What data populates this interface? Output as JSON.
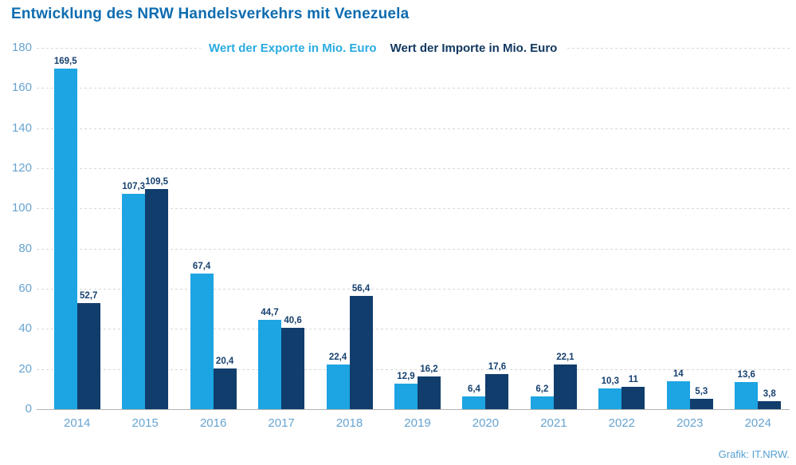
{
  "title": "Entwicklung des NRW Handelsverkehrs mit Venezuela",
  "legend": {
    "exports": "Wert der Exporte in Mio. Euro",
    "imports": "Wert der Importe in Mio. Euro"
  },
  "credit": "Grafik: IT.NRW.",
  "colors": {
    "export_bar": "#1da4e2",
    "import_bar": "#103d6c",
    "title_text": "#0d6cb0",
    "axis_labels": "#67a4d0",
    "value_labels": "#16406f",
    "gridline": "#d8d8d8",
    "baseline": "#b3b3b3"
  },
  "chart_data": {
    "type": "bar",
    "title": "Entwicklung des NRW Handelsverkehrs mit Venezuela",
    "categories": [
      "2014",
      "2015",
      "2016",
      "2017",
      "2018",
      "2019",
      "2020",
      "2021",
      "2022",
      "2023",
      "2024"
    ],
    "series": [
      {
        "name": "Wert der Exporte in Mio. Euro",
        "color": "#1da4e2",
        "values": [
          169.5,
          107.3,
          67.4,
          44.7,
          22.4,
          12.9,
          6.4,
          6.2,
          10.3,
          14,
          13.6
        ],
        "labels": [
          "169,5",
          "107,3",
          "67,4",
          "44,7",
          "22,4",
          "12,9",
          "6,4",
          "6,2",
          "10,3",
          "14",
          "13,6"
        ]
      },
      {
        "name": "Wert der Importe in Mio. Euro",
        "color": "#103d6c",
        "values": [
          52.7,
          109.5,
          20.4,
          40.6,
          56.4,
          16.2,
          17.6,
          22.1,
          11,
          5.3,
          3.8
        ],
        "labels": [
          "52,7",
          "109,5",
          "20,4",
          "40,6",
          "56,4",
          "16,2",
          "17,6",
          "22,1",
          "11",
          "5,3",
          "3,8"
        ]
      }
    ],
    "xlabel": "",
    "ylabel": "",
    "ylim": [
      0,
      180
    ],
    "ytick_step": 20,
    "ytick_labels": [
      "180",
      "160",
      "140",
      "120",
      "100",
      "80",
      "60",
      "40",
      "20",
      "0"
    ],
    "grid": "horizontal-dashed",
    "legend_position": "top-center"
  }
}
